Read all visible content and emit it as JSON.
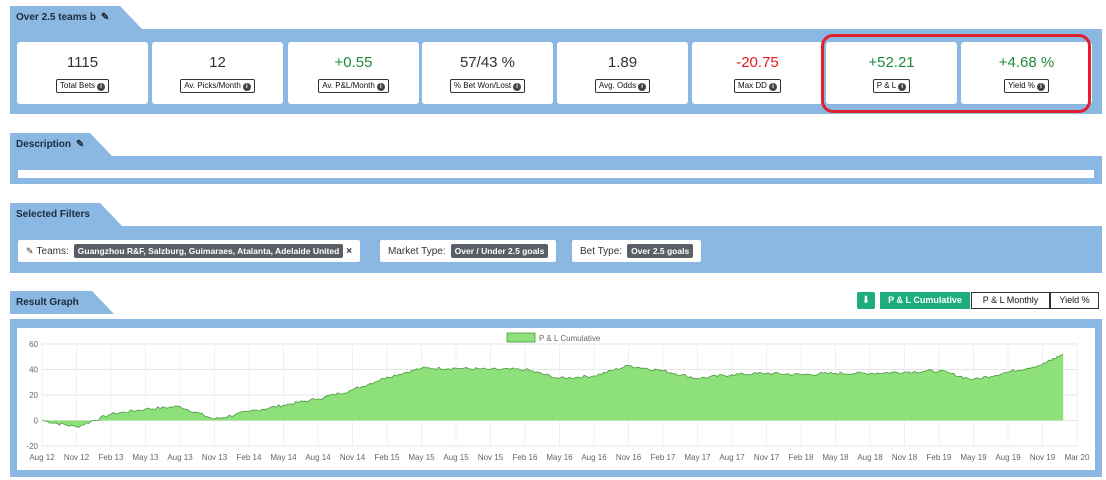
{
  "strategy": {
    "title": "Over 2.5 teams b"
  },
  "stats": [
    {
      "value": "1115",
      "label": "Total Bets",
      "tone": "neutral"
    },
    {
      "value": "12",
      "label": "Av. Picks/Month",
      "tone": "neutral"
    },
    {
      "value": "+0.55",
      "label": "Av. P&L/Month",
      "tone": "pos"
    },
    {
      "value": "57/43 %",
      "label": "% Bet Won/Lost",
      "tone": "neutral"
    },
    {
      "value": "1.89",
      "label": "Avg. Odds",
      "tone": "neutral"
    },
    {
      "value": "-20.75",
      "label": "Max DD",
      "tone": "neg"
    },
    {
      "value": "+52.21",
      "label": "P & L",
      "tone": "pos"
    },
    {
      "value": "+4.68 %",
      "label": "Yield %",
      "tone": "pos"
    }
  ],
  "description": {
    "title": "Description",
    "text": ""
  },
  "filters": {
    "title": "Selected Filters",
    "teams_label": "Teams:",
    "teams_value": "Guangzhou R&F, Salzburg, Guimaraes, Atalanta, Adelaide United",
    "market_label": "Market Type:",
    "market_value": "Over / Under 2.5 goals",
    "bet_label": "Bet Type:",
    "bet_value": "Over 2.5 goals"
  },
  "graph": {
    "title": "Result Graph",
    "buttons": {
      "cumulative": "P & L Cumulative",
      "monthly": "P & L Monthly",
      "yield": "Yield %"
    }
  },
  "colors": {
    "accent": "#1eae7b",
    "band": "#8ab8e2",
    "area_fill": "#8de07a",
    "area_line": "#4a9a3e",
    "highlight": "#e0202a"
  },
  "chart_data": {
    "type": "area",
    "legend": "P & L Cumulative",
    "legend_position": "top-center",
    "grid": true,
    "ylim": [
      -10,
      60
    ],
    "yticks": [
      -20,
      0,
      20,
      40,
      60
    ],
    "x_tick_labels": [
      "Aug 12",
      "Nov 12",
      "Feb 13",
      "May 13",
      "Aug 13",
      "Nov 13",
      "Feb 14",
      "May 14",
      "Aug 14",
      "Nov 14",
      "Feb 15",
      "May 15",
      "Aug 15",
      "Nov 15",
      "Feb 16",
      "May 16",
      "Aug 16",
      "Nov 16",
      "Feb 17",
      "May 17",
      "Aug 17",
      "Nov 17",
      "Feb 18",
      "May 18",
      "Aug 18",
      "Nov 18",
      "Feb 19",
      "May 19",
      "Aug 19",
      "Nov 19",
      "Mar 20"
    ],
    "x": [
      0,
      1,
      2,
      3,
      4,
      5,
      6,
      7,
      8,
      9,
      10,
      11,
      12,
      13,
      14,
      15,
      16,
      17,
      18,
      19,
      20,
      21,
      22,
      23,
      24,
      25,
      26,
      27,
      28,
      29,
      29.6
    ],
    "y": [
      0,
      -5,
      5,
      9,
      11,
      1,
      7,
      12,
      17,
      24,
      34,
      41,
      41,
      40,
      40,
      33,
      35,
      43,
      39,
      33,
      36,
      37,
      36,
      37,
      37,
      38,
      39,
      32,
      38,
      44,
      52
    ],
    "series": [
      {
        "name": "P & L Cumulative"
      }
    ]
  }
}
